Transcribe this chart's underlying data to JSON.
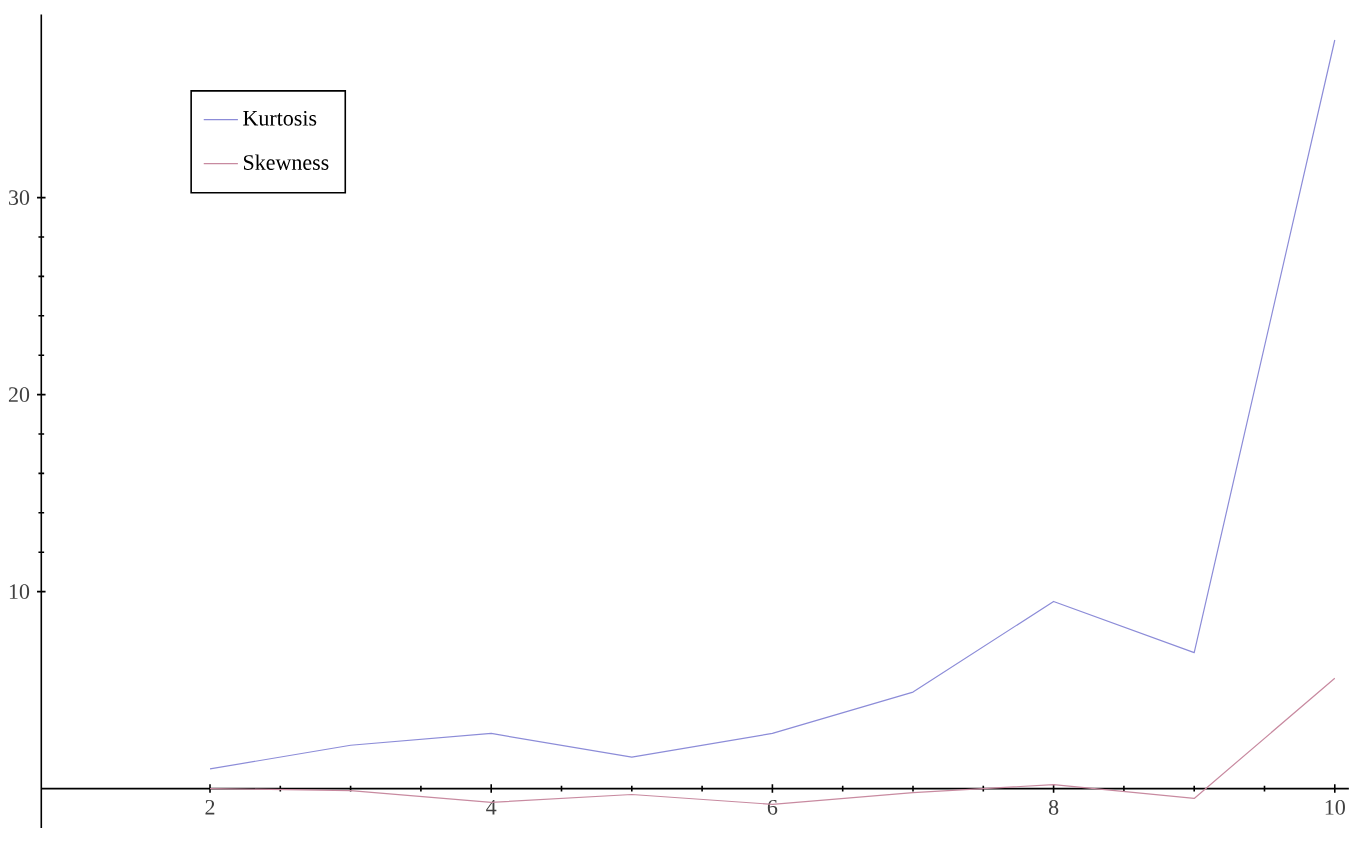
{
  "chart_data": {
    "type": "line",
    "x": [
      2,
      3,
      4,
      5,
      6,
      7,
      8,
      9,
      10
    ],
    "series": [
      {
        "name": "Kurtosis",
        "color": "#8c8cd8",
        "values": [
          1.0,
          2.2,
          2.8,
          1.6,
          2.8,
          4.9,
          9.5,
          6.9,
          38.0
        ]
      },
      {
        "name": "Skewness",
        "color": "#c88aa0",
        "values": [
          0.0,
          -0.1,
          -0.7,
          -0.3,
          -0.8,
          -0.2,
          0.2,
          -0.5,
          5.6
        ]
      }
    ],
    "xlim": [
      0.8,
      10.1
    ],
    "ylim": [
      -2,
      39.3
    ],
    "xticks": [
      2,
      4,
      6,
      8,
      10
    ],
    "yticks": [
      10,
      20,
      30
    ],
    "legend": "top left",
    "marker": "none",
    "line_style": "solid",
    "grid": false
  }
}
